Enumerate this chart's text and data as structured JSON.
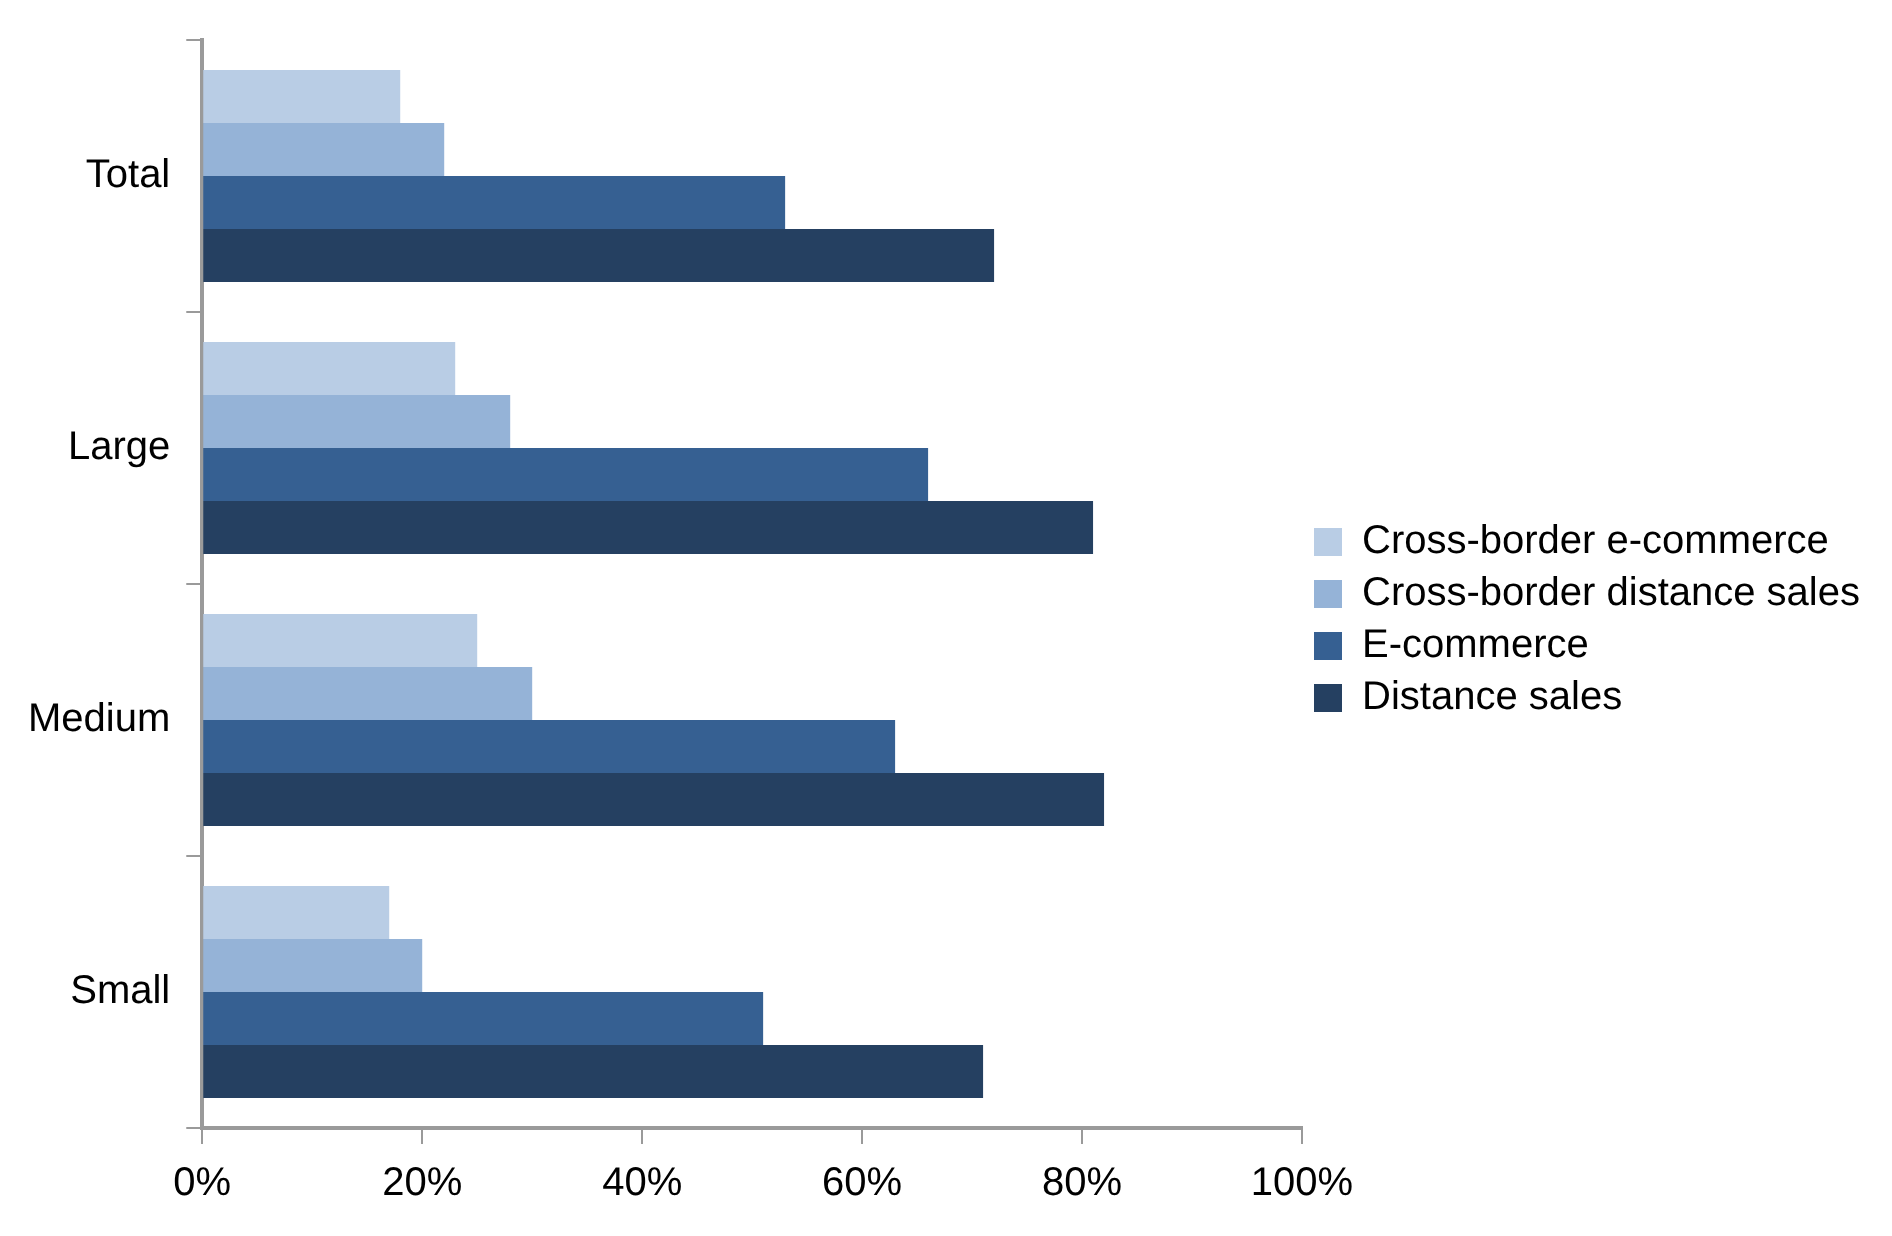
{
  "chart_data": {
    "type": "bar",
    "orientation": "horizontal",
    "categories": [
      "Total",
      "Large",
      "Medium",
      "Small"
    ],
    "series": [
      {
        "name": "Cross-border e-commerce",
        "color": "#b9cde5",
        "values": [
          18,
          23,
          25,
          17
        ]
      },
      {
        "name": "Cross-border distance sales",
        "color": "#95b3d7",
        "values": [
          22,
          28,
          30,
          20
        ]
      },
      {
        "name": "E-commerce",
        "color": "#366092",
        "values": [
          53,
          66,
          63,
          51
        ]
      },
      {
        "name": "Distance sales",
        "color": "#254061",
        "values": [
          72,
          81,
          82,
          71
        ]
      }
    ],
    "xlim": [
      0,
      100
    ],
    "xticks": [
      {
        "value": 0,
        "label": "0%"
      },
      {
        "value": 20,
        "label": "20%"
      },
      {
        "value": 40,
        "label": "40%"
      },
      {
        "value": 60,
        "label": "60%"
      },
      {
        "value": 80,
        "label": "80%"
      },
      {
        "value": 100,
        "label": "100%"
      }
    ],
    "grid": false,
    "legend": "right"
  }
}
